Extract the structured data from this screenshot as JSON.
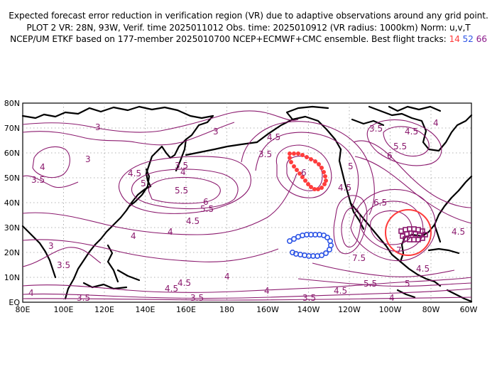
{
  "header": {
    "line1": "Expected forecast error reduction in verification region (VR) due to adaptive observations around any grid point.",
    "line2": "PLOT 2 VR: 28N, 93W, Verif. time 2025011012 Obs. time: 2025010912 (VR radius: 1000km) Norm: u,v,T",
    "line3_prefix": "NCEP/UM ETKF based on 177-member 2025010700 NCEP+ECMWF+CMC ensemble. Best flight tracks:",
    "track_red": "14",
    "track_blue": "52",
    "track_purple": "66"
  },
  "axes": {
    "y_ticks": [
      "80N",
      "70N",
      "60N",
      "50N",
      "40N",
      "30N",
      "20N",
      "10N",
      "EQ"
    ],
    "x_ticks": [
      "80E",
      "100E",
      "120E",
      "140E",
      "160E",
      "180",
      "160W",
      "140W",
      "120W",
      "100W",
      "80W",
      "60W"
    ]
  },
  "colors": {
    "contour": "#8b1a6e",
    "track_red": "#ff3c3c",
    "track_blue": "#2f56e6",
    "track_purple": "#8b1a6e",
    "vr_circle": "#ff3c3c"
  },
  "contour_labels": [
    {
      "text": "3"
    },
    {
      "text": "3"
    },
    {
      "text": "3"
    },
    {
      "text": "3.5"
    },
    {
      "text": "4"
    },
    {
      "text": "3.5"
    },
    {
      "text": "4"
    },
    {
      "text": "4.5"
    },
    {
      "text": "5"
    },
    {
      "text": "5.5"
    },
    {
      "text": "6"
    },
    {
      "text": "5.5"
    },
    {
      "text": "4.5"
    },
    {
      "text": "4"
    },
    {
      "text": "4.5"
    },
    {
      "text": "3.5"
    },
    {
      "text": "6"
    },
    {
      "text": "5"
    },
    {
      "text": "4.5"
    },
    {
      "text": "3.5"
    },
    {
      "text": "4.5"
    },
    {
      "text": "4"
    },
    {
      "text": "5.5"
    },
    {
      "text": "6"
    },
    {
      "text": "6.5"
    },
    {
      "text": "7.5"
    },
    {
      "text": "4.5"
    },
    {
      "text": "3"
    },
    {
      "text": "3.5"
    },
    {
      "text": "4"
    },
    {
      "text": "4"
    },
    {
      "text": "4"
    },
    {
      "text": "3.5"
    },
    {
      "text": "4.5"
    },
    {
      "text": "3.5"
    },
    {
      "text": "4"
    },
    {
      "text": "4.5"
    },
    {
      "text": "3.5"
    },
    {
      "text": "5.5"
    },
    {
      "text": "5"
    },
    {
      "text": "4.5"
    },
    {
      "text": "4"
    },
    {
      "text": "4.5"
    },
    {
      "text": "7"
    }
  ]
}
